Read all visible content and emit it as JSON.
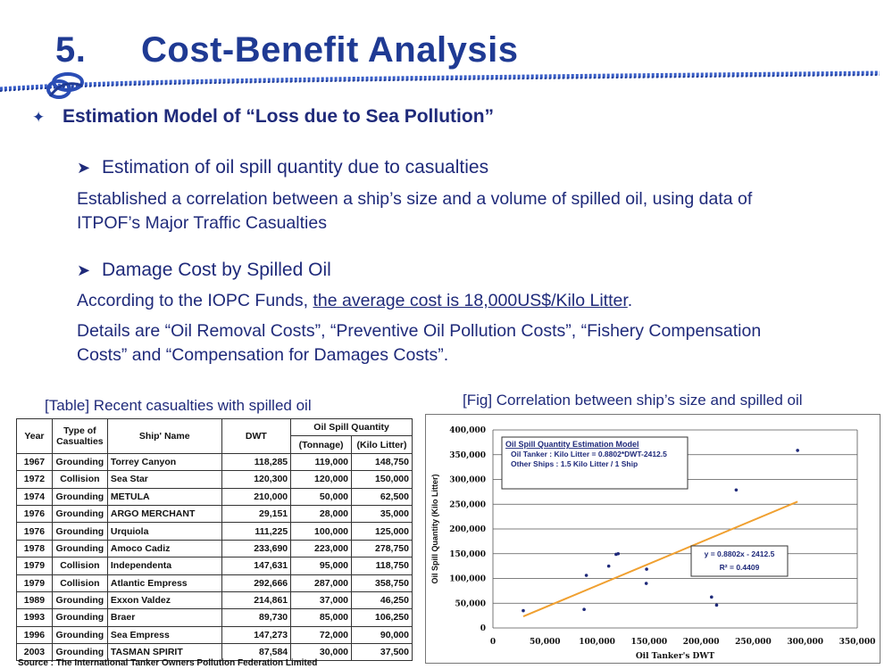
{
  "header": {
    "number": "5.",
    "title": "Cost-Benefit Analysis"
  },
  "subtitle": {
    "bullet": "✦",
    "text": "Estimation Model of “Loss due to Sea Pollution”"
  },
  "section1": {
    "heading": "Estimation of oil spill quantity due to casualties",
    "line1": "Established a correlation between a ship’s size and a volume of spilled oil, using data of",
    "line2": "ITPOF’s Major Traffic Casualties"
  },
  "section2": {
    "heading": "Damage Cost by Spilled Oil",
    "p1_prefix": "According to the IOPC Funds, ",
    "p1_underlined": "the average cost is 18,000US$/Kilo Litter",
    "p1_suffix": ".",
    "p2_line1": "Details are “Oil Removal Costs”, “Preventive Oil Pollution Costs”, “Fishery Compensation",
    "p2_line2": "Costs” and “Compensation for Damages Costs”."
  },
  "table": {
    "caption": "[Table] Recent casualties with spilled oil",
    "headers": {
      "year": "Year",
      "type": "Type of Casualties",
      "ship": "Ship' Name",
      "dwt": "DWT",
      "spill": "Oil Spill Quantity",
      "tonnage": "(Tonnage)",
      "kl": "(Kilo Litter)"
    },
    "rows": [
      {
        "year": "1967",
        "type": "Grounding",
        "ship": "Torrey Canyon",
        "dwt": "118,285",
        "tonnage": "119,000",
        "kl": "148,750"
      },
      {
        "year": "1972",
        "type": "Collision",
        "ship": "Sea Star",
        "dwt": "120,300",
        "tonnage": "120,000",
        "kl": "150,000"
      },
      {
        "year": "1974",
        "type": "Grounding",
        "ship": "METULA",
        "dwt": "210,000",
        "tonnage": "50,000",
        "kl": "62,500"
      },
      {
        "year": "1976",
        "type": "Grounding",
        "ship": "ARGO MERCHANT",
        "dwt": "29,151",
        "tonnage": "28,000",
        "kl": "35,000"
      },
      {
        "year": "1976",
        "type": "Grounding",
        "ship": "Urquiola",
        "dwt": "111,225",
        "tonnage": "100,000",
        "kl": "125,000"
      },
      {
        "year": "1978",
        "type": "Grounding",
        "ship": "Amoco Cadiz",
        "dwt": "233,690",
        "tonnage": "223,000",
        "kl": "278,750"
      },
      {
        "year": "1979",
        "type": "Collision",
        "ship": "Independenta",
        "dwt": "147,631",
        "tonnage": "95,000",
        "kl": "118,750"
      },
      {
        "year": "1979",
        "type": "Collision",
        "ship": "Atlantic Empress",
        "dwt": "292,666",
        "tonnage": "287,000",
        "kl": "358,750"
      },
      {
        "year": "1989",
        "type": "Grounding",
        "ship": "Exxon Valdez",
        "dwt": "214,861",
        "tonnage": "37,000",
        "kl": "46,250"
      },
      {
        "year": "1993",
        "type": "Grounding",
        "ship": "Braer",
        "dwt": "89,730",
        "tonnage": "85,000",
        "kl": "106,250"
      },
      {
        "year": "1996",
        "type": "Grounding",
        "ship": "Sea Empress",
        "dwt": "147,273",
        "tonnage": "72,000",
        "kl": "90,000"
      },
      {
        "year": "2003",
        "type": "Grounding",
        "ship": "TASMAN SPIRIT",
        "dwt": "87,584",
        "tonnage": "30,000",
        "kl": "37,500"
      }
    ],
    "source": "Source : The International Tanker Owners Pollution Federation Limited"
  },
  "chart_data": {
    "type": "scatter",
    "title": "[Fig] Correlation between ship’s size and spilled oil",
    "xlabel": "Oil Tanker's DWT",
    "ylabel": "Oil Spill Quantity (Kilo Litter)",
    "xlim": [
      0,
      350000
    ],
    "ylim": [
      0,
      400000
    ],
    "x_ticks": [
      "0",
      "50,000",
      "100,000",
      "150,000",
      "200,000",
      "250,000",
      "300,000",
      "350,000"
    ],
    "y_ticks": [
      "0",
      "50,000",
      "100,000",
      "150,000",
      "200,000",
      "250,000",
      "300,000",
      "350,000",
      "400,000"
    ],
    "grid": true,
    "points": [
      {
        "x": 29151,
        "y": 35000
      },
      {
        "x": 87584,
        "y": 37500
      },
      {
        "x": 89730,
        "y": 106250
      },
      {
        "x": 111225,
        "y": 125000
      },
      {
        "x": 118285,
        "y": 148750
      },
      {
        "x": 120300,
        "y": 150000
      },
      {
        "x": 147273,
        "y": 90000
      },
      {
        "x": 147631,
        "y": 118750
      },
      {
        "x": 210000,
        "y": 62500
      },
      {
        "x": 214861,
        "y": 46250
      },
      {
        "x": 233690,
        "y": 278750
      },
      {
        "x": 292666,
        "y": 358750
      }
    ],
    "trendline": {
      "slope": 0.8802,
      "intercept": -2412.5,
      "x_range": [
        29151,
        292666
      ],
      "color": "#f0a030"
    },
    "trend_label_1": "y = 0.8802x - 2412.5",
    "trend_label_2": "R² = 0.4409",
    "model_box": {
      "title": "Oil Spill Quantity Estimation Model",
      "line1": "Oil Tanker : Kilo Litter = 0.8802*DWT-2412.5",
      "line2": "Other Ships : 1.5 Kilo Litter / 1 Ship"
    }
  }
}
